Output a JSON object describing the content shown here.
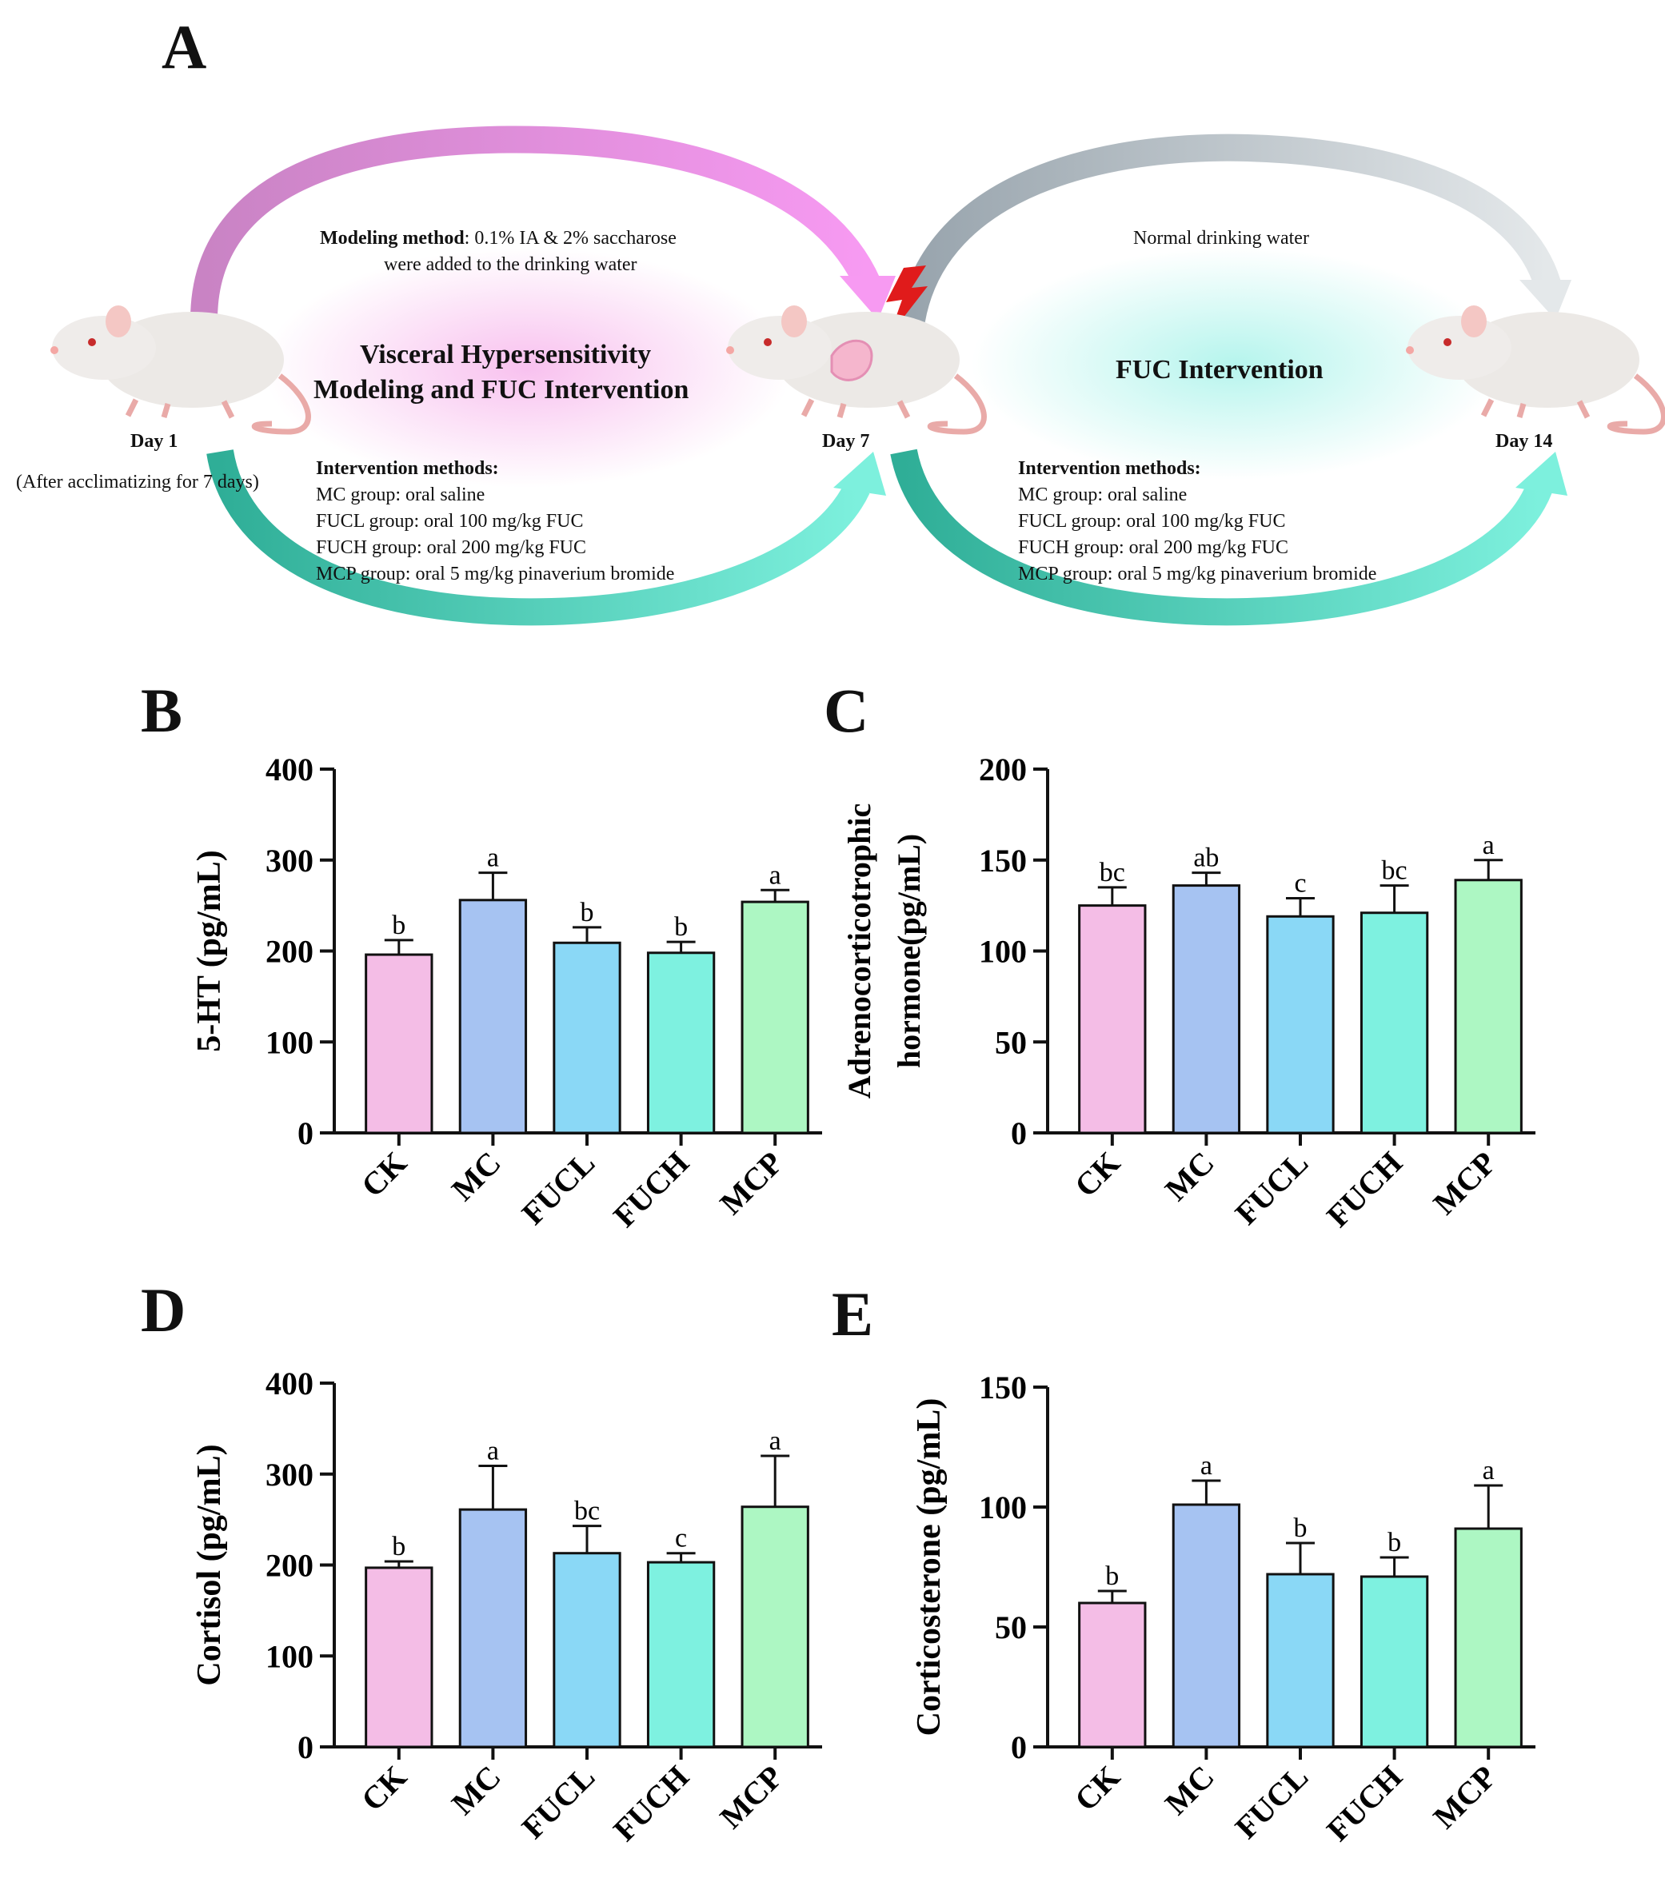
{
  "panels": {
    "a": "A",
    "b": "B",
    "c": "C",
    "d": "D",
    "e": "E"
  },
  "schematic": {
    "modeling_method_label": "Modeling method",
    "modeling_method_text1": ": 0.1% IA & 2% saccharose",
    "modeling_method_text2": "were added to the drinking water",
    "phase1_title1": "Visceral Hypersensitivity",
    "phase1_title2": "Modeling and FUC Intervention",
    "phase2_top": "Normal drinking water",
    "phase2_title": "FUC Intervention",
    "day1": "Day 1",
    "day1_note": "(After acclimatizing for 7 days)",
    "day7": "Day 7",
    "day14": "Day 14",
    "intervention_heading": "Intervention methods:",
    "methods": [
      "MC group: oral saline",
      "FUCL group: oral 100 mg/kg FUC",
      "FUCH group: oral 200 mg/kg FUC",
      "MCP group: oral 5 mg/kg pinaverium bromide"
    ],
    "colors": {
      "pink": "#e48fe0",
      "teal": "#4fcab5",
      "gray": "#a9b3bb",
      "bolt": "#e01b1b"
    }
  },
  "chart_data": [
    {
      "id": "B",
      "type": "bar",
      "ylabel": "5-HT (pg/mL)",
      "categories": [
        "CK",
        "MC",
        "FUCL",
        "FUCH",
        "MCP"
      ],
      "values": [
        196,
        256,
        209,
        198,
        254
      ],
      "errors": [
        16,
        30,
        17,
        12,
        13
      ],
      "letters": [
        "b",
        "a",
        "b",
        "b",
        "a"
      ],
      "ylim": [
        0,
        400
      ],
      "ticks": [
        0,
        100,
        200,
        300,
        400
      ]
    },
    {
      "id": "C",
      "type": "bar",
      "ylabel": "Adrenocorticotrophic hormone(pg/mL)",
      "ylabel_lines": [
        "Adrenocorticotrophic",
        "hormone(pg/mL)"
      ],
      "categories": [
        "CK",
        "MC",
        "FUCL",
        "FUCH",
        "MCP"
      ],
      "values": [
        125,
        136,
        119,
        121,
        139
      ],
      "errors": [
        10,
        7,
        10,
        15,
        11
      ],
      "letters": [
        "bc",
        "ab",
        "c",
        "bc",
        "a"
      ],
      "ylim": [
        0,
        200
      ],
      "ticks": [
        0,
        50,
        100,
        150,
        200
      ]
    },
    {
      "id": "D",
      "type": "bar",
      "ylabel": "Cortisol (pg/mL)",
      "categories": [
        "CK",
        "MC",
        "FUCL",
        "FUCH",
        "MCP"
      ],
      "values": [
        197,
        261,
        213,
        203,
        264
      ],
      "errors": [
        7,
        48,
        30,
        10,
        56
      ],
      "letters": [
        "b",
        "a",
        "bc",
        "c",
        "a"
      ],
      "ylim": [
        0,
        400
      ],
      "ticks": [
        0,
        100,
        200,
        300,
        400
      ]
    },
    {
      "id": "E",
      "type": "bar",
      "ylabel": "Corticosterone (pg/mL)",
      "categories": [
        "CK",
        "MC",
        "FUCL",
        "FUCH",
        "MCP"
      ],
      "values": [
        60,
        101,
        72,
        71,
        91
      ],
      "errors": [
        5,
        10,
        13,
        8,
        18
      ],
      "letters": [
        "b",
        "a",
        "b",
        "b",
        "a"
      ],
      "ylim": [
        0,
        150
      ],
      "ticks": [
        0,
        50,
        100,
        150
      ]
    }
  ],
  "bar_colors": [
    "#f4bde6",
    "#a6c3f2",
    "#8ad8f6",
    "#7ef1e0",
    "#adf7c3"
  ]
}
